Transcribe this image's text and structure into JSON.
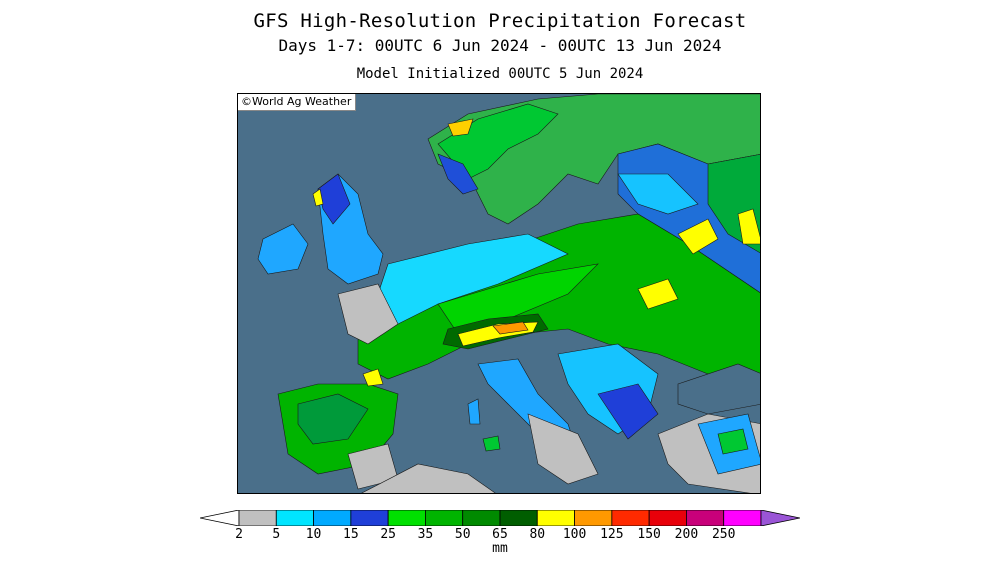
{
  "header": {
    "title": "GFS High-Resolution Precipitation Forecast",
    "subtitle": "Days 1-7: 00UTC 6 Jun 2024 - 00UTC 13 Jun 2024",
    "init_line": "Model Initialized 00UTC 5 Jun 2024"
  },
  "map": {
    "region": "Europe",
    "credit": "©World Ag Weather",
    "colors": {
      "sea": "#4a6f8a",
      "land_dry": "#c0c0c0",
      "border": "#000000"
    }
  },
  "legend": {
    "units": "mm",
    "bins": [
      {
        "label": "2",
        "color": "#c0c0c0"
      },
      {
        "label": "5",
        "color": "#00e5ff"
      },
      {
        "label": "10",
        "color": "#00aaff"
      },
      {
        "label": "15",
        "color": "#1f3fd8"
      },
      {
        "label": "25",
        "color": "#00e000"
      },
      {
        "label": "35",
        "color": "#00b400"
      },
      {
        "label": "50",
        "color": "#008a00"
      },
      {
        "label": "65",
        "color": "#005e00"
      },
      {
        "label": "80",
        "color": "#ffff00"
      },
      {
        "label": "100",
        "color": "#ff9900"
      },
      {
        "label": "125",
        "color": "#ff2a00"
      },
      {
        "label": "150",
        "color": "#e8000a"
      },
      {
        "label": "200",
        "color": "#c8007a"
      },
      {
        "label": "250",
        "color": "#ff00ff"
      },
      {
        "label": "",
        "color": "#9a55d6"
      }
    ]
  }
}
